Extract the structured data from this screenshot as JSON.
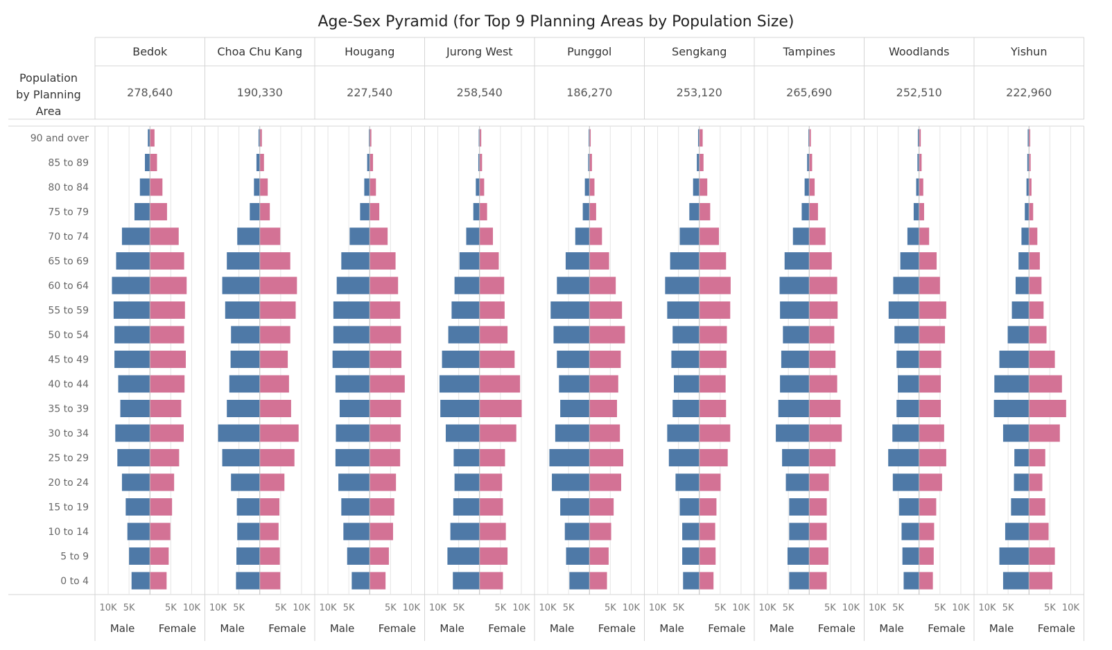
{
  "chart_data": {
    "type": "bar",
    "title": "Age-Sex Pyramid (for Top 9 Planning Areas by Population Size)",
    "row_header_label": "Population by Planning Area",
    "categories": [
      "90 and over",
      "85 to 89",
      "80 to 84",
      "75 to 79",
      "70 to 74",
      "65 to 69",
      "60 to 64",
      "55 to 59",
      "50 to 54",
      "45 to 49",
      "40 to 44",
      "35 to 39",
      "30 to 34",
      "25 to 29",
      "20 to 24",
      "15 to 19",
      "10 to 14",
      "5 to 9",
      "0 to 4"
    ],
    "axis_ticks_male": [
      "10K",
      "5K"
    ],
    "axis_ticks_female": [
      "5K",
      "10K"
    ],
    "xlim": [
      0,
      12500
    ],
    "male_label": "Male",
    "female_label": "Female",
    "colors": {
      "male": "#4e79a7",
      "female": "#d37295"
    },
    "areas": [
      {
        "name": "Bedok",
        "population": "278,640",
        "male": [
          500,
          1200,
          2400,
          3700,
          6700,
          8100,
          9100,
          8700,
          8500,
          8500,
          7600,
          7100,
          8300,
          7800,
          6700,
          5800,
          5400,
          5000,
          4400
        ],
        "female": [
          1100,
          1700,
          3000,
          4100,
          6900,
          8200,
          8800,
          8400,
          8200,
          8600,
          8300,
          7500,
          8100,
          7000,
          5800,
          5300,
          4900,
          4500,
          4000
        ]
      },
      {
        "name": "Choa Chu Kang",
        "population": "190,330",
        "male": [
          300,
          800,
          1400,
          2400,
          5400,
          7900,
          9000,
          8300,
          6900,
          7000,
          7300,
          7900,
          10000,
          9000,
          6900,
          5500,
          5400,
          5600,
          5700
        ],
        "female": [
          500,
          1000,
          1900,
          2400,
          4900,
          7300,
          8900,
          8600,
          7300,
          6700,
          7000,
          7500,
          9300,
          8300,
          5900,
          4700,
          4500,
          4800,
          4900
        ]
      },
      {
        "name": "Hougang",
        "population": "227,540",
        "male": [
          200,
          600,
          1300,
          2300,
          4800,
          6800,
          7900,
          8700,
          8700,
          8900,
          8200,
          7200,
          8100,
          8200,
          7500,
          6800,
          6300,
          5400,
          4300
        ],
        "female": [
          400,
          800,
          1500,
          2300,
          4300,
          6200,
          6800,
          7300,
          7500,
          7600,
          8400,
          7500,
          7400,
          7300,
          6300,
          5900,
          5600,
          4600,
          3800
        ]
      },
      {
        "name": "Jurong West",
        "population": "258,540",
        "male": [
          200,
          300,
          900,
          1500,
          3200,
          4800,
          6000,
          6700,
          7500,
          9000,
          9600,
          9400,
          8100,
          6200,
          6000,
          6300,
          7000,
          7700,
          6400
        ],
        "female": [
          400,
          600,
          1100,
          1800,
          3200,
          4600,
          5900,
          6000,
          6700,
          8400,
          9700,
          10100,
          8800,
          6100,
          5400,
          5600,
          6300,
          6700,
          5600
        ]
      },
      {
        "name": "Punggol",
        "population": "186,270",
        "male": [
          200,
          300,
          1100,
          1600,
          3400,
          5700,
          7800,
          9300,
          8600,
          7800,
          7300,
          7000,
          8200,
          9600,
          9000,
          7000,
          5900,
          5600,
          4800
        ],
        "female": [
          300,
          600,
          1200,
          1600,
          3000,
          4700,
          6300,
          7800,
          8500,
          7500,
          6900,
          6600,
          7300,
          8100,
          7600,
          5800,
          5200,
          4600,
          4200
        ]
      },
      {
        "name": "Sengkang",
        "population": "253,120",
        "male": [
          300,
          600,
          1500,
          2400,
          4700,
          7000,
          8200,
          7700,
          6400,
          6700,
          6100,
          6400,
          7700,
          7300,
          5700,
          4700,
          4100,
          4100,
          3900
        ],
        "female": [
          800,
          1000,
          1900,
          2600,
          4700,
          6400,
          7500,
          7400,
          6600,
          6500,
          6300,
          6400,
          7400,
          6800,
          5100,
          4100,
          3800,
          3900,
          3400
        ]
      },
      {
        "name": "Tampines",
        "population": "265,690",
        "male": [
          200,
          500,
          1100,
          1800,
          3900,
          5900,
          7100,
          7000,
          6300,
          6700,
          7000,
          7400,
          8000,
          6500,
          5600,
          4800,
          4800,
          5200,
          4800
        ],
        "female": [
          400,
          700,
          1300,
          2100,
          3900,
          5400,
          6700,
          6800,
          6000,
          6300,
          6700,
          7500,
          7800,
          6300,
          4700,
          4200,
          4200,
          4600,
          4200
        ]
      },
      {
        "name": "Woodlands",
        "population": "252,510",
        "male": [
          300,
          400,
          700,
          1300,
          2800,
          4500,
          6200,
          7300,
          5900,
          5400,
          5100,
          5400,
          6400,
          7400,
          6300,
          4800,
          4200,
          4000,
          3700
        ],
        "female": [
          400,
          600,
          1000,
          1200,
          2400,
          4200,
          5000,
          6500,
          6200,
          5300,
          5200,
          5200,
          6000,
          6500,
          5500,
          4100,
          3600,
          3500,
          3300
        ]
      },
      {
        "name": "Yishun",
        "population": "222,960",
        "male": [
          300,
          400,
          600,
          1000,
          1800,
          2500,
          3200,
          4100,
          5100,
          7100,
          8300,
          8400,
          6200,
          3500,
          3600,
          4300,
          5700,
          7100,
          6200
        ],
        "female": [
          300,
          400,
          600,
          1000,
          2000,
          2600,
          3000,
          3500,
          4200,
          6200,
          7900,
          8900,
          7400,
          3900,
          3200,
          3900,
          4700,
          6200,
          5600
        ]
      }
    ]
  }
}
